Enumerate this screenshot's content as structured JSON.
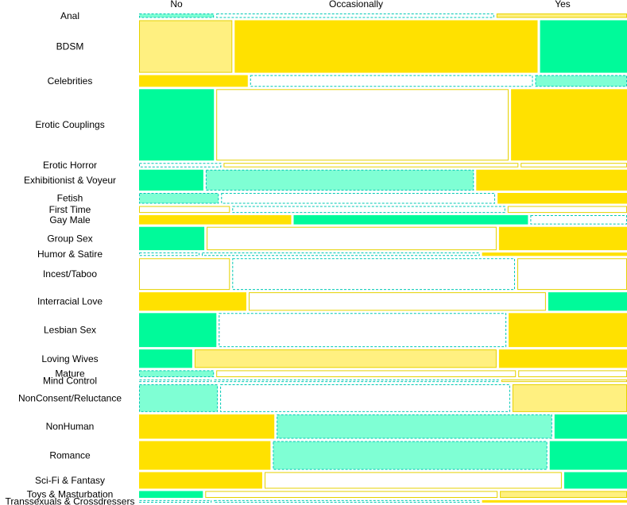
{
  "chart_data": {
    "type": "mosaic",
    "title": "",
    "column_labels": [
      "No",
      "Occasionally",
      "Yes"
    ],
    "fill_styles": {
      "yellow": "#ffe100",
      "light-yellow": "#fff080",
      "green": "#00fa9a",
      "light-green": "#7fffd4",
      "white": "#ffffff",
      "dashed-border": "#00c9b4",
      "solid-border": "#e6d200"
    },
    "rows": [
      {
        "label": "Anal",
        "weight": 0.009,
        "cells": [
          {
            "share": 0.155,
            "style": "light-green"
          },
          {
            "share": 0.575,
            "style": "white-dashed"
          },
          {
            "share": 0.27,
            "style": "light-yellow"
          }
        ]
      },
      {
        "label": "BDSM",
        "weight": 0.108,
        "cells": [
          {
            "share": 0.193,
            "style": "light-yellow"
          },
          {
            "share": 0.627,
            "style": "yellow"
          },
          {
            "share": 0.18,
            "style": "green"
          }
        ]
      },
      {
        "label": "Celebrities",
        "weight": 0.024,
        "cells": [
          {
            "share": 0.225,
            "style": "yellow"
          },
          {
            "share": 0.585,
            "style": "white-dashed"
          },
          {
            "share": 0.19,
            "style": "light-green"
          }
        ]
      },
      {
        "label": "Erotic Couplings",
        "weight": 0.147,
        "cells": [
          {
            "share": 0.155,
            "style": "green"
          },
          {
            "share": 0.605,
            "style": "white"
          },
          {
            "share": 0.24,
            "style": "yellow"
          }
        ]
      },
      {
        "label": "Erotic Horror",
        "weight": 0.009,
        "cells": [
          {
            "share": 0.17,
            "style": "white-dashed"
          },
          {
            "share": 0.61,
            "style": "white"
          },
          {
            "share": 0.22,
            "style": "white"
          }
        ]
      },
      {
        "label": "Exhibitionist & Voyeur",
        "weight": 0.043,
        "cells": [
          {
            "share": 0.133,
            "style": "green"
          },
          {
            "share": 0.555,
            "style": "light-green"
          },
          {
            "share": 0.312,
            "style": "yellow"
          }
        ]
      },
      {
        "label": "Fetish",
        "weight": 0.022,
        "cells": [
          {
            "share": 0.165,
            "style": "light-green"
          },
          {
            "share": 0.567,
            "style": "white-dashed"
          },
          {
            "share": 0.268,
            "style": "yellow"
          }
        ]
      },
      {
        "label": "First Time",
        "weight": 0.014,
        "cells": [
          {
            "share": 0.188,
            "style": "white"
          },
          {
            "share": 0.565,
            "style": "white-dashed"
          },
          {
            "share": 0.247,
            "style": "white"
          }
        ]
      },
      {
        "label": "Gay Male",
        "weight": 0.019,
        "cells": [
          {
            "share": 0.315,
            "style": "yellow"
          },
          {
            "share": 0.485,
            "style": "green"
          },
          {
            "share": 0.2,
            "style": "white-dashed"
          }
        ]
      },
      {
        "label": "Group Sex",
        "weight": 0.048,
        "cells": [
          {
            "share": 0.135,
            "style": "green"
          },
          {
            "share": 0.6,
            "style": "white"
          },
          {
            "share": 0.265,
            "style": "yellow"
          }
        ]
      },
      {
        "label": "Humor & Satire",
        "weight": 0.007,
        "cells": [
          {
            "share": 0.125,
            "style": "white-dashed"
          },
          {
            "share": 0.575,
            "style": "white-dashed"
          },
          {
            "share": 0.3,
            "style": "yellow"
          }
        ]
      },
      {
        "label": "Incest/Taboo",
        "weight": 0.065,
        "cells": [
          {
            "share": 0.188,
            "style": "white"
          },
          {
            "share": 0.585,
            "style": "white-dashed"
          },
          {
            "share": 0.227,
            "style": "white"
          }
        ]
      },
      {
        "label": "Interracial Love",
        "weight": 0.038,
        "cells": [
          {
            "share": 0.222,
            "style": "yellow"
          },
          {
            "share": 0.615,
            "style": "white"
          },
          {
            "share": 0.163,
            "style": "green"
          }
        ]
      },
      {
        "label": "Lesbian Sex",
        "weight": 0.07,
        "cells": [
          {
            "share": 0.16,
            "style": "green"
          },
          {
            "share": 0.595,
            "style": "white-dashed"
          },
          {
            "share": 0.245,
            "style": "yellow"
          }
        ]
      },
      {
        "label": "Loving Wives",
        "weight": 0.038,
        "cells": [
          {
            "share": 0.11,
            "style": "green"
          },
          {
            "share": 0.625,
            "style": "light-yellow"
          },
          {
            "share": 0.265,
            "style": "yellow"
          }
        ]
      },
      {
        "label": "Mature",
        "weight": 0.014,
        "cells": [
          {
            "share": 0.155,
            "style": "light-green"
          },
          {
            "share": 0.62,
            "style": "white"
          },
          {
            "share": 0.225,
            "style": "white"
          }
        ]
      },
      {
        "label": "Mind Control",
        "weight": 0.005,
        "cells": [
          {
            "share": 0.15,
            "style": "white-dashed"
          },
          {
            "share": 0.59,
            "style": "white-dashed"
          },
          {
            "share": 0.26,
            "style": "white"
          }
        ]
      },
      {
        "label": "NonConsent/Reluctance",
        "weight": 0.057,
        "cells": [
          {
            "share": 0.163,
            "style": "light-green"
          },
          {
            "share": 0.6,
            "style": "white-dashed"
          },
          {
            "share": 0.237,
            "style": "light-yellow"
          }
        ]
      },
      {
        "label": "NonHuman",
        "weight": 0.05,
        "cells": [
          {
            "share": 0.28,
            "style": "yellow"
          },
          {
            "share": 0.57,
            "style": "light-green"
          },
          {
            "share": 0.15,
            "style": "green"
          }
        ]
      },
      {
        "label": "Romance",
        "weight": 0.059,
        "cells": [
          {
            "share": 0.272,
            "style": "yellow"
          },
          {
            "share": 0.568,
            "style": "light-green"
          },
          {
            "share": 0.16,
            "style": "green"
          }
        ]
      },
      {
        "label": "Sci-Fi & Fantasy",
        "weight": 0.034,
        "cells": [
          {
            "share": 0.255,
            "style": "yellow"
          },
          {
            "share": 0.615,
            "style": "white"
          },
          {
            "share": 0.13,
            "style": "green"
          }
        ]
      },
      {
        "label": "Toys & Masturbation",
        "weight": 0.014,
        "cells": [
          {
            "share": 0.132,
            "style": "green"
          },
          {
            "share": 0.605,
            "style": "white"
          },
          {
            "share": 0.263,
            "style": "light-yellow"
          }
        ]
      },
      {
        "label": "Transsexuals & Crossdressers",
        "weight": 0.005,
        "cells": [
          {
            "share": 0.15,
            "style": "white-dashed"
          },
          {
            "share": 0.55,
            "style": "white-dashed"
          },
          {
            "share": 0.3,
            "style": "yellow"
          }
        ]
      }
    ]
  }
}
